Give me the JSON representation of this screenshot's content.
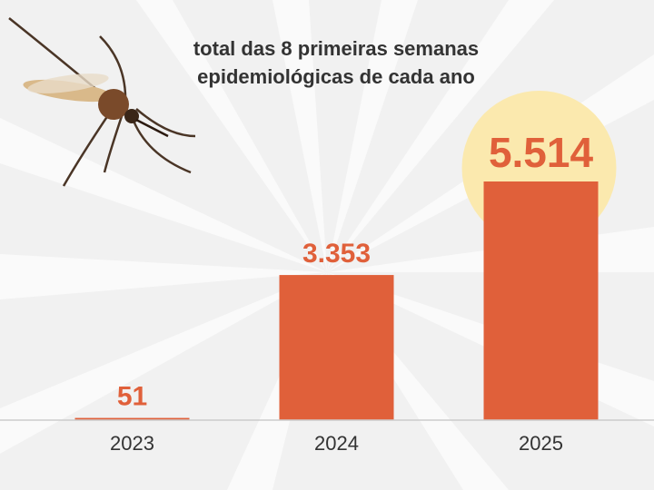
{
  "chart_data": {
    "type": "bar",
    "title": "total das 8 primeiras semanas epidemiológicas de cada ano",
    "categories": [
      "2023",
      "2024",
      "2025"
    ],
    "values": [
      51,
      3353,
      5514
    ],
    "value_labels": [
      "51",
      "3.353",
      "5.514"
    ],
    "color": "#e0603a"
  }
}
